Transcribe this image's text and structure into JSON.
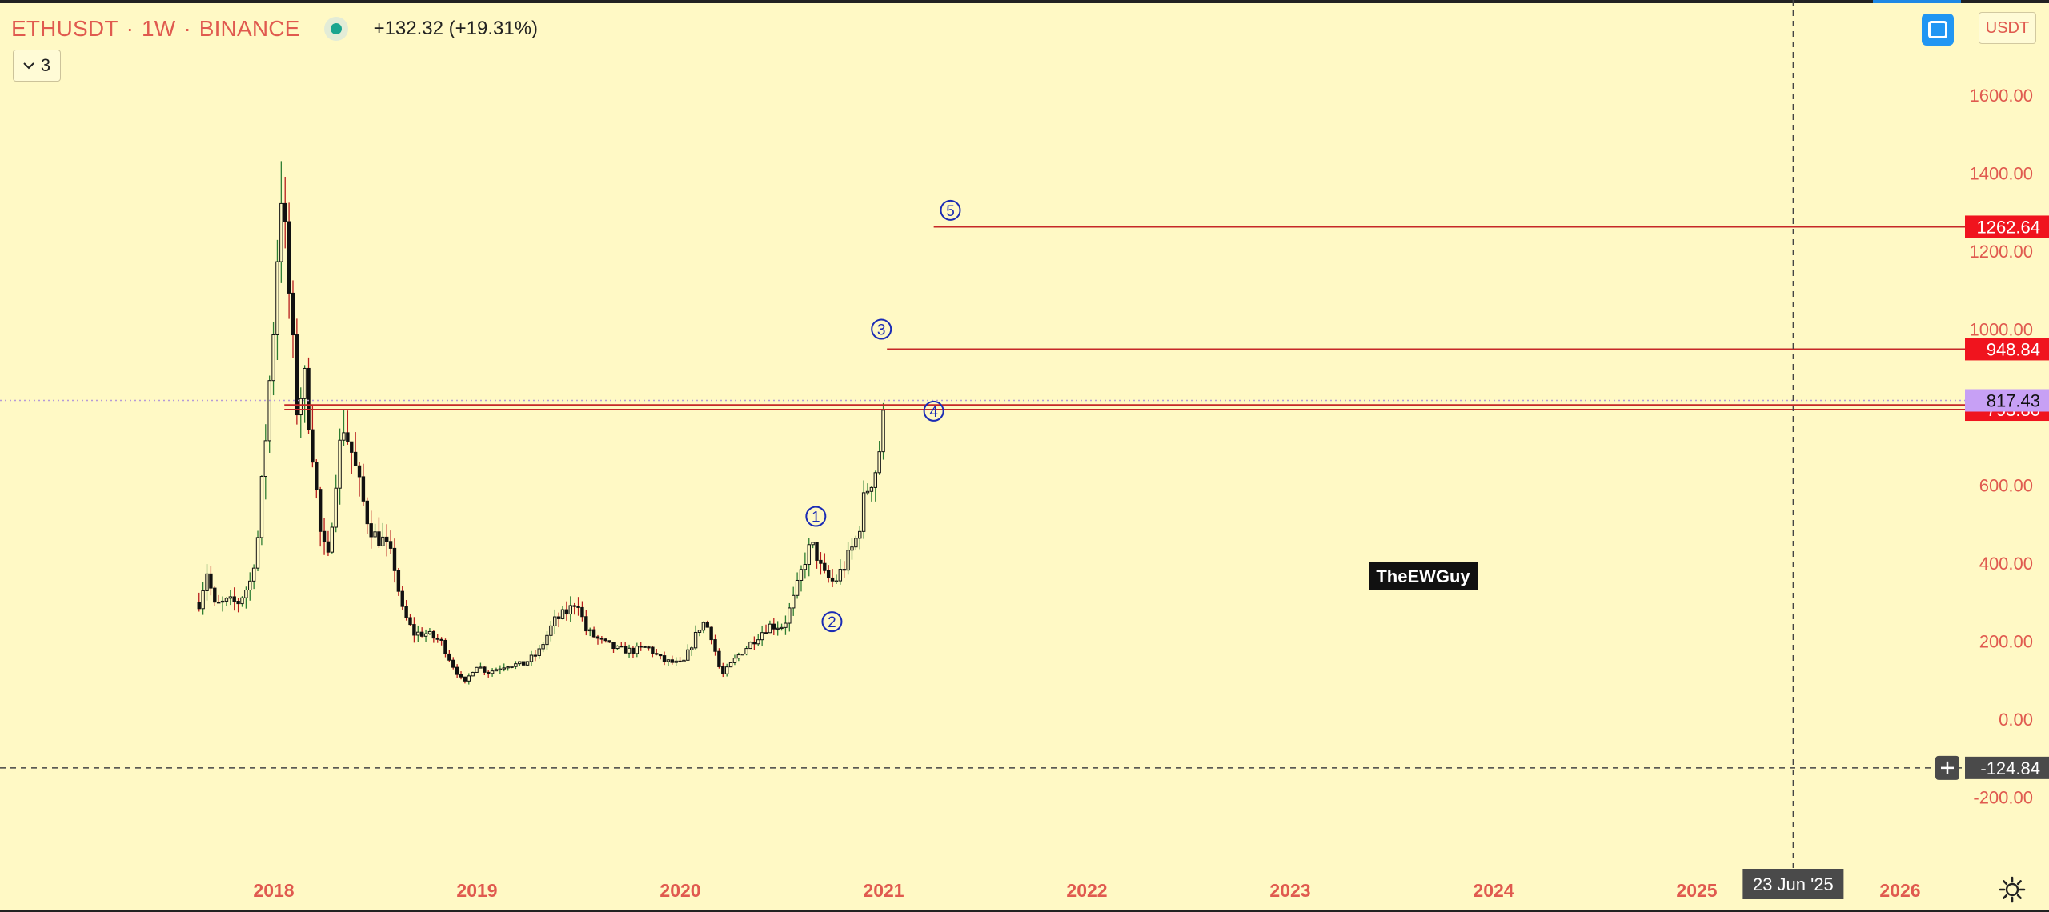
{
  "header": {
    "symbol": "ETHUSDT",
    "interval": "1W",
    "exchange": "BINANCE",
    "change": "+132.32 (+19.31%)"
  },
  "indicator_toggle": {
    "count": "3"
  },
  "currency_button": {
    "label": "USDT"
  },
  "watermark": {
    "text": "TheEWGuy"
  },
  "colors": {
    "background": "#fff9c5",
    "axis_text": "#e05a4f",
    "level_line": "#c62828",
    "price_tag_red": "#f0141e",
    "price_tag_purple": "#c7a0f5",
    "wave_label": "#1a2bb5",
    "candle": "#111111"
  },
  "chart_data": {
    "type": "candlestick",
    "symbol": "ETHUSDT",
    "interval": "1W",
    "y_axis": {
      "ticks": [
        1600,
        1400,
        1200,
        1000,
        800,
        600,
        400,
        200,
        0,
        -200
      ],
      "tick_labels": [
        "1600.00",
        "1400.00",
        "1200.00",
        "1000.00",
        "800.00",
        "600.00",
        "400.00",
        "200.00",
        "0.00",
        "-200.00"
      ]
    },
    "x_axis": {
      "ticks": [
        "2018",
        "2019",
        "2020",
        "2021",
        "2022",
        "2023",
        "2024",
        "2025",
        "2026"
      ]
    },
    "price_path": [
      [
        "2017-08-20",
        300
      ],
      [
        "2017-09-03",
        380
      ],
      [
        "2017-09-17",
        290
      ],
      [
        "2017-10-08",
        300
      ],
      [
        "2017-10-29",
        300
      ],
      [
        "2017-11-19",
        350
      ],
      [
        "2017-12-03",
        460
      ],
      [
        "2017-12-17",
        720
      ],
      [
        "2017-12-31",
        1000
      ],
      [
        "2018-01-14",
        1370
      ],
      [
        "2018-01-28",
        1100
      ],
      [
        "2018-02-11",
        800
      ],
      [
        "2018-02-25",
        870
      ],
      [
        "2018-03-11",
        700
      ],
      [
        "2018-03-25",
        480
      ],
      [
        "2018-04-08",
        400
      ],
      [
        "2018-04-22",
        620
      ],
      [
        "2018-05-06",
        760
      ],
      [
        "2018-05-20",
        690
      ],
      [
        "2018-06-03",
        600
      ],
      [
        "2018-06-17",
        520
      ],
      [
        "2018-07-01",
        470
      ],
      [
        "2018-07-15",
        460
      ],
      [
        "2018-08-05",
        400
      ],
      [
        "2018-08-19",
        280
      ],
      [
        "2018-09-09",
        220
      ],
      [
        "2018-09-30",
        220
      ],
      [
        "2018-10-28",
        200
      ],
      [
        "2018-11-18",
        140
      ],
      [
        "2018-12-09",
        90
      ],
      [
        "2018-12-30",
        140
      ],
      [
        "2019-01-20",
        120
      ],
      [
        "2019-02-24",
        140
      ],
      [
        "2019-03-24",
        140
      ],
      [
        "2019-04-21",
        170
      ],
      [
        "2019-05-19",
        250
      ],
      [
        "2019-06-16",
        280
      ],
      [
        "2019-06-30",
        310
      ],
      [
        "2019-07-14",
        230
      ],
      [
        "2019-08-11",
        200
      ],
      [
        "2019-09-08",
        180
      ],
      [
        "2019-10-06",
        175
      ],
      [
        "2019-11-03",
        185
      ],
      [
        "2019-12-01",
        150
      ],
      [
        "2020-01-05",
        140
      ],
      [
        "2020-02-09",
        250
      ],
      [
        "2020-02-23",
        230
      ],
      [
        "2020-03-15",
        110
      ],
      [
        "2020-04-12",
        160
      ],
      [
        "2020-05-10",
        200
      ],
      [
        "2020-06-07",
        240
      ],
      [
        "2020-07-05",
        240
      ],
      [
        "2020-07-26",
        320
      ],
      [
        "2020-08-16",
        430
      ],
      [
        "2020-08-30",
        440
      ],
      [
        "2020-09-13",
        370
      ],
      [
        "2020-10-04",
        350
      ],
      [
        "2020-10-25",
        400
      ],
      [
        "2020-11-15",
        470
      ],
      [
        "2020-11-29",
        580
      ],
      [
        "2020-12-20",
        650
      ],
      [
        "2021-01-03",
        790
      ]
    ],
    "price_range_approx": {
      "low": 84,
      "high": 1420
    },
    "horizontal_levels": [
      {
        "price": 1262.64,
        "label": "1262.64",
        "from": "2021-04-01"
      },
      {
        "price": 948.84,
        "label": "948.84",
        "from": "2021-01-07"
      },
      {
        "price": 805.65,
        "label": "805.65",
        "from": "2018-01-20"
      },
      {
        "price": 793.8,
        "label": "793.80",
        "from": "2018-01-20"
      }
    ],
    "last_price": {
      "price": 817.43,
      "label": "817.43"
    },
    "crosshair": {
      "price": -124.84,
      "price_label": "-124.84",
      "date": "2025-06-23",
      "date_label": "23 Jun '25"
    },
    "wave_labels": [
      {
        "label": "1",
        "date": "2020-09-01",
        "price": 520
      },
      {
        "label": "2",
        "date": "2020-09-30",
        "price": 250
      },
      {
        "label": "3",
        "date": "2020-12-28",
        "price": 1000
      },
      {
        "label": "4",
        "date": "2021-04-01",
        "price": 790
      },
      {
        "label": "5",
        "date": "2021-05-01",
        "price": 1305
      }
    ]
  }
}
